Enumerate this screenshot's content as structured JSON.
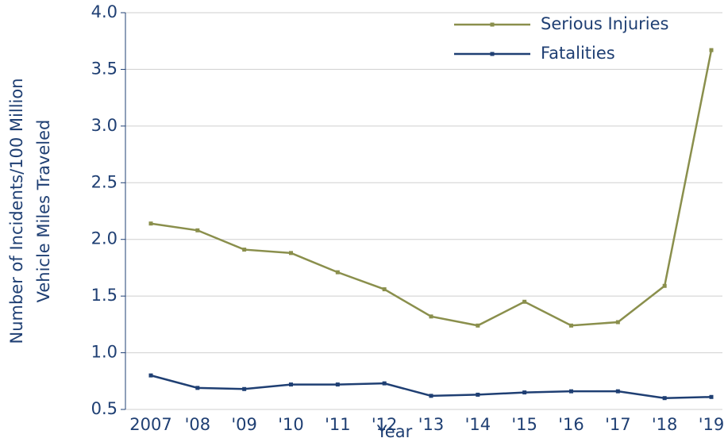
{
  "chart_data": {
    "type": "line",
    "xlabel": "Year",
    "ylabel": [
      "Number of Incidents/100 Million",
      "Vehicle Miles Traveled"
    ],
    "categories": [
      "2007",
      "'08",
      "'09",
      "'10",
      "'11",
      "'12",
      "'13",
      "'14",
      "'15",
      "'16",
      "'17",
      "'18",
      "'19"
    ],
    "series": [
      {
        "name": "Serious Injuries",
        "color": "#8a8f4c",
        "values": [
          2.14,
          2.08,
          1.91,
          1.88,
          1.71,
          1.56,
          1.32,
          1.24,
          1.45,
          1.24,
          1.27,
          1.59,
          3.67
        ]
      },
      {
        "name": "Fatalities",
        "color": "#1f3f73",
        "values": [
          0.8,
          0.69,
          0.68,
          0.72,
          0.72,
          0.73,
          0.62,
          0.63,
          0.65,
          0.66,
          0.66,
          0.6,
          0.61
        ]
      }
    ],
    "ylim": [
      0.5,
      4.0
    ],
    "yticks": [
      {
        "value": 0.5,
        "label": "0.5"
      },
      {
        "value": 1.0,
        "label": "1.0"
      },
      {
        "value": 1.5,
        "label": "1.5"
      },
      {
        "value": 2.0,
        "label": "2.0"
      },
      {
        "value": 2.5,
        "label": "2.5"
      },
      {
        "value": 3.0,
        "label": "3.0"
      },
      {
        "value": 3.5,
        "label": "3.5"
      },
      {
        "value": 4.0,
        "label": "4.0"
      }
    ],
    "grid": true,
    "legend": "top-right"
  }
}
